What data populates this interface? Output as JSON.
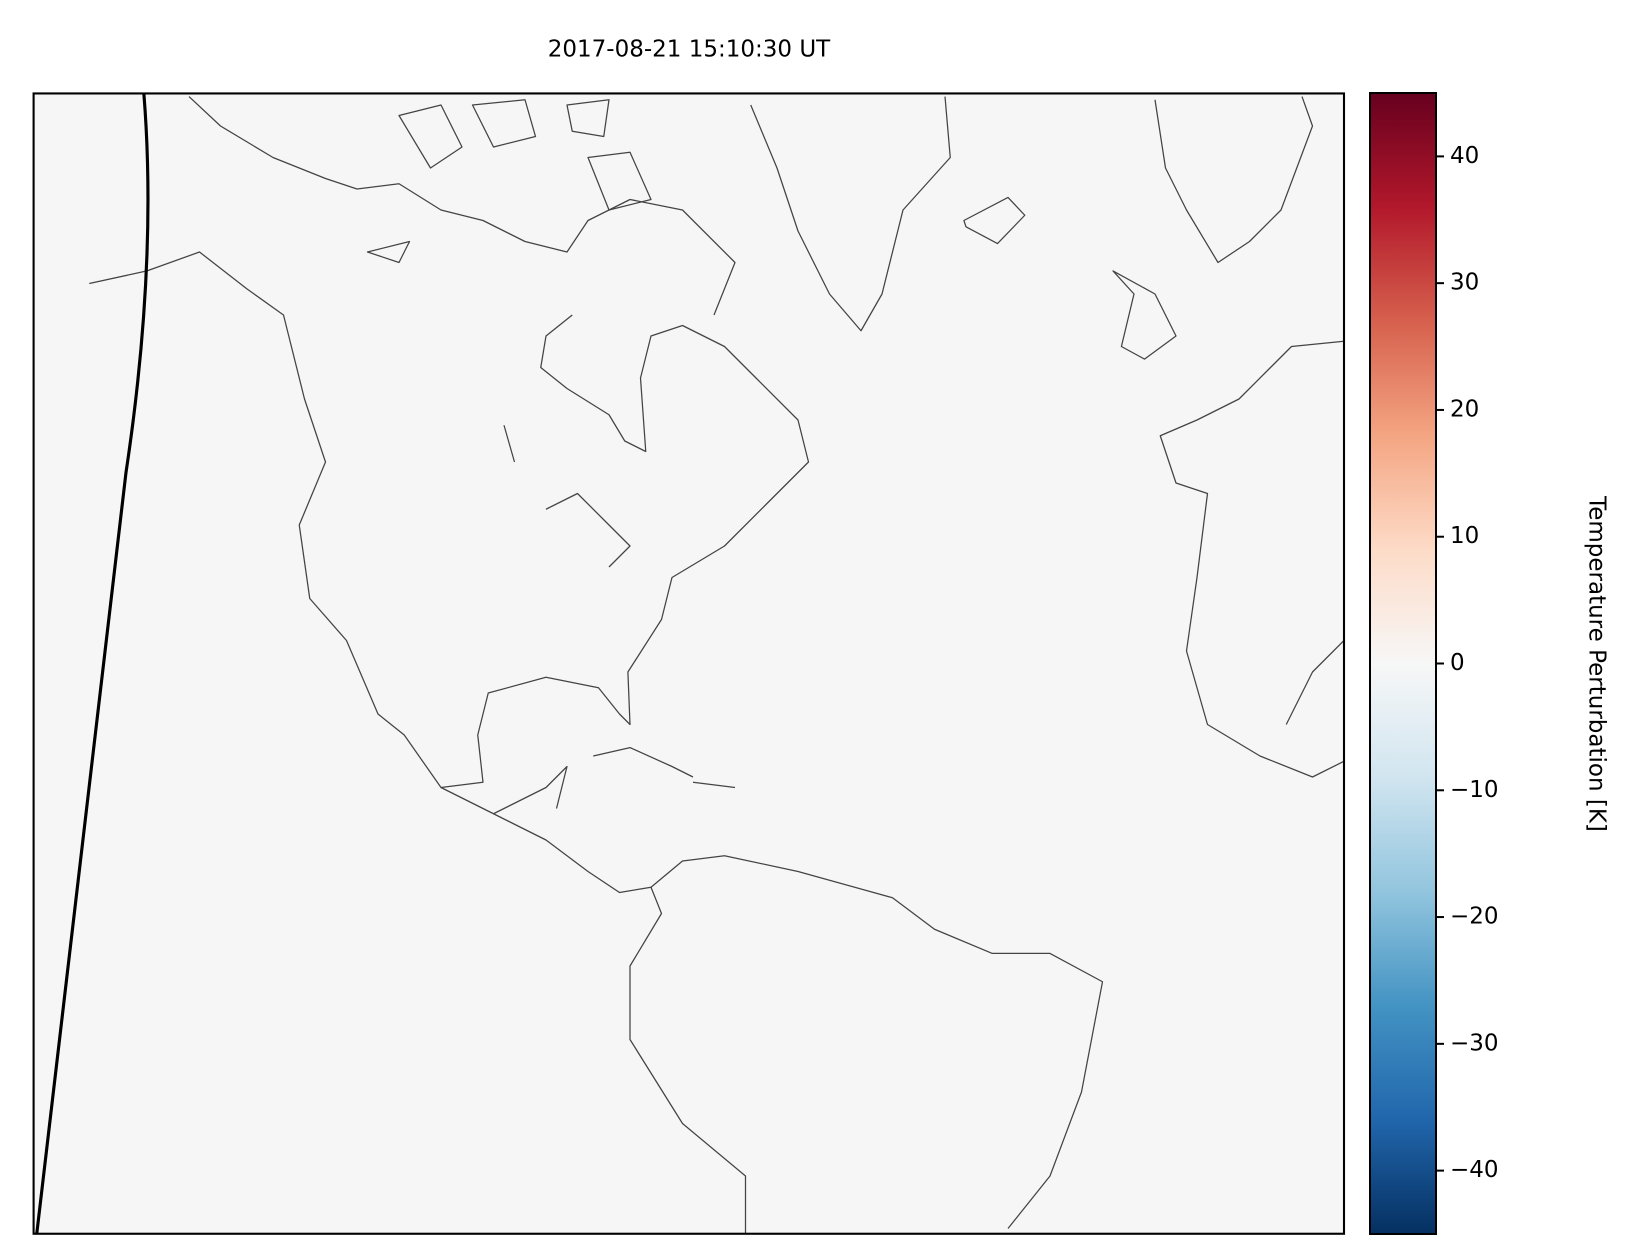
{
  "chart_data": {
    "type": "map",
    "title": "2017-08-21 15:10:30 UT",
    "colorbar": {
      "label": "Temperature Perturbation [K]",
      "clim": [
        -45,
        45
      ],
      "ticks": [
        {
          "value": -40,
          "label": "−40"
        },
        {
          "value": -30,
          "label": "−30"
        },
        {
          "value": -20,
          "label": "−20"
        },
        {
          "value": -10,
          "label": "−10"
        },
        0,
        10,
        20,
        30,
        40
      ]
    }
  }
}
